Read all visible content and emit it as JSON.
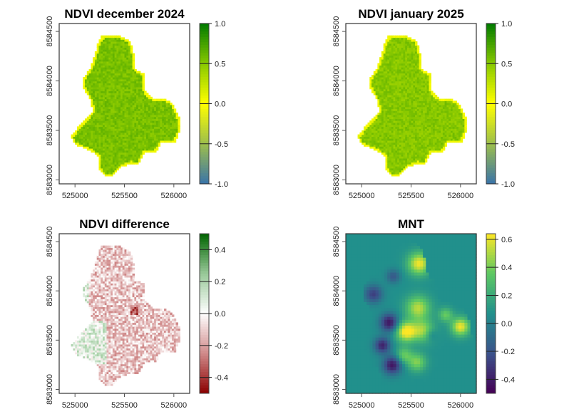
{
  "chart_data": [
    {
      "type": "heatmap",
      "title": "NDVI december 2024",
      "xlabel": "",
      "ylabel": "",
      "xlim": [
        524840,
        526160
      ],
      "ylim": [
        8582960,
        8584580
      ],
      "x_ticks": [
        525000,
        525500,
        526000
      ],
      "x_tick_labels": [
        "525000",
        "525500",
        "526000"
      ],
      "y_ticks": [
        8583000,
        8583500,
        8584000,
        8584500
      ],
      "y_tick_labels": [
        "8583000",
        "8583500",
        "8584000",
        "8584500"
      ],
      "colorbar": {
        "range": [
          -1.0,
          1.0
        ],
        "ticks": [
          -1.0,
          -0.5,
          0.0,
          0.5,
          1.0
        ],
        "tick_labels": [
          "-1.0",
          "-0.5",
          "0.0",
          "0.5",
          "1.0"
        ],
        "colors": [
          "#3A74A8",
          "#9DBE4C",
          "#FFFF00",
          "#87C800",
          "#007A00"
        ],
        "placement": "right"
      },
      "fill_value": 0.55,
      "edge_value": 0.02,
      "shape": "field"
    },
    {
      "type": "heatmap",
      "title": "NDVI january 2025",
      "xlabel": "",
      "ylabel": "",
      "xlim": [
        524840,
        526160
      ],
      "ylim": [
        8582960,
        8584580
      ],
      "x_ticks": [
        525000,
        525500,
        526000
      ],
      "x_tick_labels": [
        "525000",
        "525500",
        "526000"
      ],
      "y_ticks": [
        8583000,
        8583500,
        8584000,
        8584500
      ],
      "y_tick_labels": [
        "8583000",
        "8583500",
        "8584000",
        "8584500"
      ],
      "colorbar": {
        "range": [
          -1.0,
          1.0
        ],
        "ticks": [
          -1.0,
          -0.5,
          0.0,
          0.5,
          1.0
        ],
        "tick_labels": [
          "-1.0",
          "-0.5",
          "0.0",
          "0.5",
          "1.0"
        ],
        "colors": [
          "#3A74A8",
          "#9DBE4C",
          "#FFFF00",
          "#87C800",
          "#007A00"
        ],
        "placement": "right"
      },
      "fill_value": 0.5,
      "edge_value": 0.02,
      "shape": "field"
    },
    {
      "type": "heatmap",
      "title": "NDVI difference",
      "xlabel": "",
      "ylabel": "",
      "xlim": [
        524840,
        526160
      ],
      "ylim": [
        8582960,
        8584580
      ],
      "x_ticks": [
        525000,
        525500,
        526000
      ],
      "x_tick_labels": [
        "525000",
        "525500",
        "526000"
      ],
      "y_ticks": [
        8583000,
        8583500,
        8584000,
        8584500
      ],
      "y_tick_labels": [
        "8583000",
        "8583500",
        "8584000",
        "8584500"
      ],
      "colorbar": {
        "range": [
          -0.5,
          0.5
        ],
        "ticks": [
          -0.4,
          -0.2,
          0.0,
          0.2,
          0.4
        ],
        "tick_labels": [
          "-0.4",
          "-0.2",
          "0.0",
          "0.2",
          "0.4"
        ],
        "colors": [
          "#8B0000",
          "#D08A8A",
          "#FFFFFF",
          "#98C898",
          "#006400"
        ],
        "placement": "right"
      },
      "shape": "field"
    },
    {
      "type": "heatmap",
      "title": "MNT",
      "xlabel": "",
      "ylabel": "",
      "xlim": [
        524840,
        526160
      ],
      "ylim": [
        8582960,
        8584580
      ],
      "x_ticks": [
        525000,
        525500,
        526000
      ],
      "x_tick_labels": [
        "525000",
        "525500",
        "526000"
      ],
      "y_ticks": [
        8583000,
        8583500,
        8584000,
        8584500
      ],
      "y_tick_labels": [
        "8583000",
        "8583500",
        "8584000",
        "8584500"
      ],
      "colorbar": {
        "range": [
          -0.5,
          0.64
        ],
        "ticks": [
          -0.4,
          -0.2,
          0.0,
          0.2,
          0.4,
          0.6
        ],
        "tick_labels": [
          "-0.4",
          "-0.2",
          "0.0",
          "0.2",
          "0.4",
          "0.6"
        ],
        "colors": [
          "#440154",
          "#3B528B",
          "#21908C",
          "#5DC863",
          "#FDE725"
        ],
        "placement": "right"
      },
      "background_value": 0.07,
      "shape": "full"
    }
  ]
}
